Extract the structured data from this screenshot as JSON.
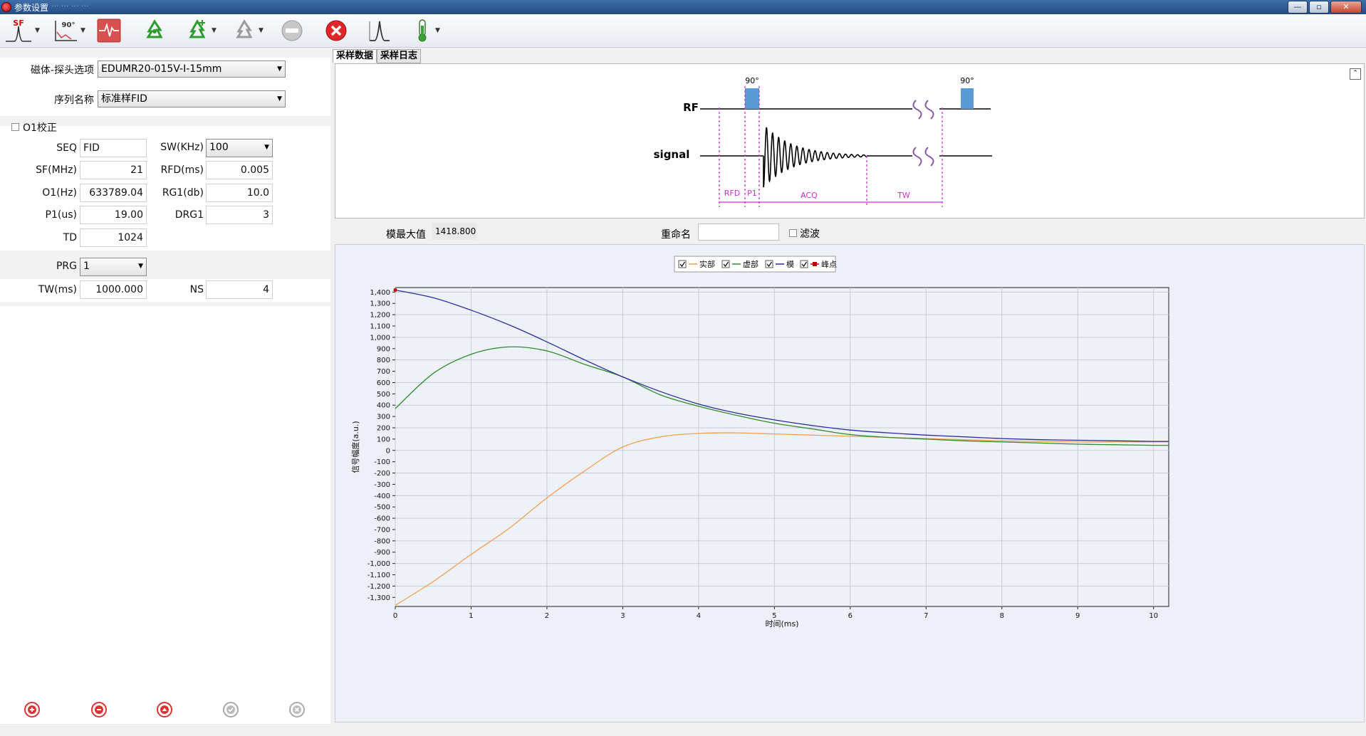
{
  "window": {
    "title": "参数设置",
    "title_extra": "··· ··· ··· ···",
    "minimize_label": "—",
    "restore_label": "▫",
    "close_label": "✕"
  },
  "toolbar": {
    "sf_icon_label": "SF",
    "p90_icon_label": "90°"
  },
  "left_panel": {
    "magnet_probe_label": "磁体-探头选项",
    "magnet_probe_value": "EDUMR20-015V-I-15mm",
    "sequence_label": "序列名称",
    "sequence_value": "标准样FID",
    "o1_calibrate_label": "O1校正",
    "o1_calibrate_checked": false,
    "params": {
      "seq_label": "SEQ",
      "seq_value": "FID",
      "sw_label": "SW(KHz)",
      "sw_value": "100",
      "sf_label": "SF(MHz)",
      "sf_value": "21",
      "rfd_label": "RFD(ms)",
      "rfd_value": "0.005",
      "o1_label": "O1(Hz)",
      "o1_value": "633789.04",
      "rg1_label": "RG1(db)",
      "rg1_value": "10.0",
      "p1_label": "P1(us)",
      "p1_value": "19.00",
      "drg1_label": "DRG1",
      "drg1_value": "3",
      "td_label": "TD",
      "td_value": "1024",
      "prg_label": "PRG",
      "prg_value": "1",
      "tw_label": "TW(ms)",
      "tw_value": "1000.000",
      "ns_label": "NS",
      "ns_value": "4"
    },
    "bottom_buttons": [
      "add-icon",
      "remove-icon",
      "up-icon",
      "confirm-icon",
      "cancel-icon"
    ]
  },
  "tabs": [
    {
      "label": "采样数据",
      "active": true
    },
    {
      "label": "采样日志",
      "active": false
    }
  ],
  "pulse_diagram": {
    "rf_label": "RF",
    "signal_label": "signal",
    "pulse1_label": "90°",
    "pulse2_label": "90°",
    "rfd_label": "RFD",
    "p1_label": "P1",
    "acq_label": "ACQ",
    "tw_label": "TW",
    "pulse_color": "#5b9bd5",
    "marker_color": "#d62fd6"
  },
  "info": {
    "max_value_label": "模最大值",
    "max_value": "1418.800",
    "rename_label": "重命名",
    "rename_value": "",
    "filter_label": "滤波",
    "filter_checked": false
  },
  "chart_data": {
    "type": "line",
    "title": "",
    "xlabel": "时间(ms)",
    "ylabel": "信号幅度(a.u.)",
    "xlim": [
      0,
      10.2
    ],
    "ylim": [
      -1380,
      1440
    ],
    "x_ticks": [
      0,
      1,
      2,
      3,
      4,
      5,
      6,
      7,
      8,
      9,
      10
    ],
    "y_ticks": [
      1400,
      1300,
      1200,
      1100,
      1000,
      900,
      800,
      700,
      600,
      500,
      400,
      300,
      200,
      100,
      0,
      -100,
      -200,
      -300,
      -400,
      -500,
      -600,
      -700,
      -800,
      -900,
      -1000,
      -1100,
      -1200,
      -1300
    ],
    "y_tick_labels": [
      "1,400",
      "1,300",
      "1,200",
      "1,100",
      "1,000",
      "900",
      "800",
      "700",
      "600",
      "500",
      "400",
      "300",
      "200",
      "100",
      "0",
      "-100",
      "-200",
      "-300",
      "-400",
      "-500",
      "-600",
      "-700",
      "-800",
      "-900",
      "-1,000",
      "-1,100",
      "-1,200",
      "-1,300"
    ],
    "grid": true,
    "legend_position": "top-center",
    "legend": [
      {
        "name": "实部",
        "color": "#f0a050",
        "checked": true
      },
      {
        "name": "虚部",
        "color": "#2e8b2e",
        "checked": true
      },
      {
        "name": "模",
        "color": "#2c2c9a",
        "checked": true
      },
      {
        "name": "峰点",
        "color": "#c00000",
        "checked": true
      }
    ],
    "series": [
      {
        "name": "实部",
        "color": "#f0a050",
        "x": [
          0,
          0.5,
          1,
          1.5,
          2,
          2.5,
          3,
          3.5,
          4,
          4.5,
          5,
          5.5,
          6,
          6.5,
          7,
          7.5,
          8,
          8.5,
          9,
          9.5,
          10,
          10.2
        ],
        "y": [
          -1370,
          -1160,
          -920,
          -690,
          -420,
          -180,
          30,
          120,
          150,
          155,
          145,
          135,
          125,
          115,
          105,
          95,
          85,
          80,
          75,
          75,
          75,
          75
        ]
      },
      {
        "name": "虚部",
        "color": "#2e8b2e",
        "x": [
          0,
          0.5,
          1,
          1.5,
          2,
          2.5,
          3,
          3.5,
          4,
          4.5,
          5,
          5.5,
          6,
          6.5,
          7,
          7.5,
          8,
          8.5,
          9,
          9.5,
          10,
          10.2
        ],
        "y": [
          370,
          680,
          850,
          915,
          880,
          760,
          650,
          490,
          390,
          310,
          240,
          190,
          140,
          115,
          100,
          85,
          75,
          65,
          55,
          50,
          45,
          45
        ]
      },
      {
        "name": "模",
        "color": "#2c2c9a",
        "x": [
          0,
          0.5,
          1,
          1.5,
          2,
          2.5,
          3,
          3.5,
          4,
          4.5,
          5,
          5.5,
          6,
          6.5,
          7,
          7.5,
          8,
          8.5,
          9,
          9.5,
          10,
          10.2
        ],
        "y": [
          1418,
          1350,
          1240,
          1110,
          960,
          800,
          650,
          520,
          410,
          330,
          270,
          220,
          180,
          155,
          135,
          120,
          105,
          95,
          90,
          85,
          80,
          80
        ]
      }
    ],
    "peak_point": {
      "x": 0,
      "y": 1418.8
    }
  }
}
